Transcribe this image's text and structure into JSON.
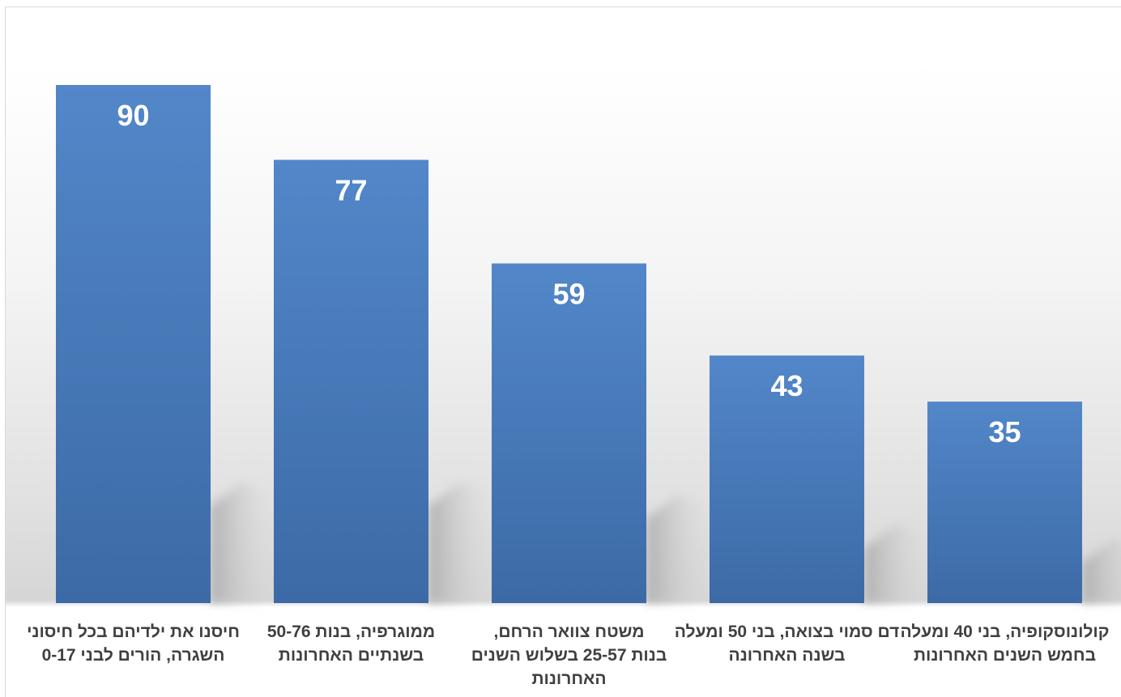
{
  "chart_data": {
    "type": "bar",
    "title": "",
    "xlabel": "",
    "ylabel": "",
    "ylim": [
      0,
      100
    ],
    "grid": false,
    "legend": "none",
    "bar_color": "#4a7dbf",
    "label_color": "#404040",
    "categories": [
      [
        "חיסנו את ילדיהם בכל חיסוני",
        "השגרה, הורים לבני 0-17"
      ],
      [
        "ממוגרפיה, בנות 50-76",
        "בשנתיים האחרונות"
      ],
      [
        "משטח צוואר הרחם,",
        "בנות 25-57 בשלוש השנים",
        "האחרונות"
      ],
      [
        "דם סמוי בצואה, בני 50 ומעלה",
        "בשנה האחרונה"
      ],
      [
        "קולונוסקופיה, בני 40 ומעלה",
        "בחמש השנים האחרונות"
      ]
    ],
    "values": [
      90,
      77,
      59,
      43,
      35
    ]
  }
}
